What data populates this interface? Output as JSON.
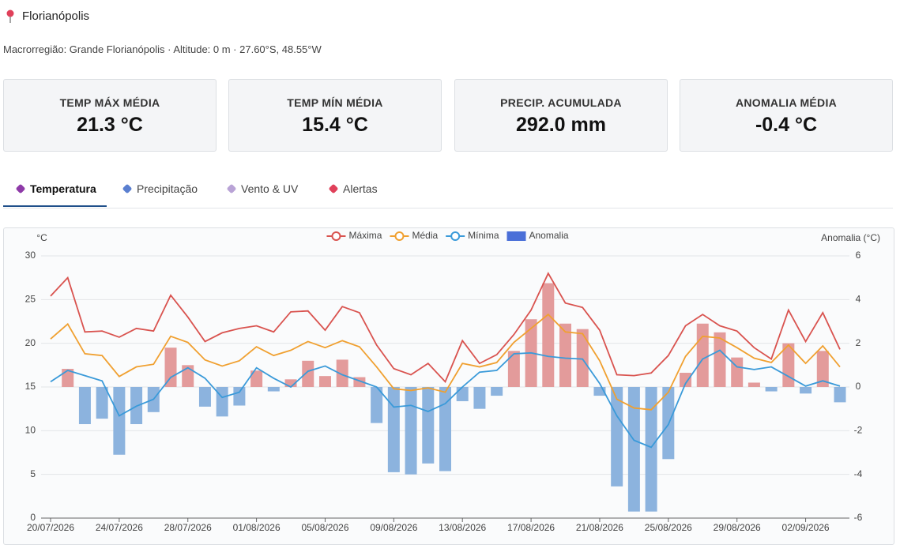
{
  "header": {
    "title": "Florianópolis",
    "subtitle": "Macrorregião: Grande Florianópolis · Altitude: 0 m · 27.60°S, 48.55°W"
  },
  "stats": [
    {
      "label": "TEMP MÁX MÉDIA",
      "value": "21.3 °C"
    },
    {
      "label": "TEMP MÍN MÉDIA",
      "value": "15.4 °C"
    },
    {
      "label": "PRECIP. ACUMULADA",
      "value": "292.0 mm"
    },
    {
      "label": "ANOMALIA MÉDIA",
      "value": "-0.4 °C"
    }
  ],
  "tabs": [
    "Temperatura",
    "Precipitação",
    "Vento & UV",
    "Alertas"
  ],
  "active_tab": 0,
  "chart_data": {
    "type": "combo",
    "y_label": "°C",
    "y2_label": "Anomalia (°C)",
    "categories": [
      "20/07/2026",
      null,
      null,
      null,
      "24/07/2026",
      null,
      null,
      null,
      "28/07/2026",
      null,
      null,
      null,
      "01/08/2026",
      null,
      null,
      null,
      "05/08/2026",
      null,
      null,
      null,
      "09/08/2026",
      null,
      null,
      null,
      "13/08/2026",
      null,
      null,
      null,
      "17/08/2026",
      null,
      null,
      null,
      "21/08/2026",
      null,
      null,
      null,
      "25/08/2026",
      null,
      null,
      null,
      "29/08/2026",
      null,
      null,
      null,
      "02/09/2026",
      null,
      null
    ],
    "ylim": [
      0,
      30
    ],
    "yticks": [
      0,
      5,
      10,
      15,
      20,
      25,
      30
    ],
    "y2lim": [
      -6,
      6
    ],
    "y2ticks": [
      -6,
      -4,
      -2,
      0,
      2,
      4,
      6
    ],
    "grid": true,
    "legend": "top",
    "series": [
      {
        "name": "Máxima",
        "type": "line",
        "color": "#d9534f",
        "values": [
          25.4,
          27.5,
          21.3,
          21.4,
          20.7,
          21.7,
          21.4,
          25.5,
          23.0,
          20.2,
          21.2,
          21.7,
          22.0,
          21.3,
          23.6,
          23.7,
          21.5,
          24.2,
          23.5,
          19.8,
          17.1,
          16.4,
          17.7,
          15.6,
          20.3,
          17.7,
          18.7,
          21.0,
          23.8,
          28.0,
          24.6,
          24.1,
          21.5,
          16.4,
          16.3,
          16.6,
          18.6,
          22.0,
          23.3,
          22.0,
          21.4,
          19.5,
          18.2,
          23.8,
          20.2,
          23.5,
          19.3
        ]
      },
      {
        "name": "Média",
        "type": "line",
        "color": "#f0a030",
        "values": [
          20.5,
          22.2,
          18.8,
          18.6,
          16.2,
          17.3,
          17.6,
          20.8,
          20.1,
          18.1,
          17.4,
          18.0,
          19.6,
          18.6,
          19.2,
          20.2,
          19.5,
          20.3,
          19.6,
          17.3,
          14.8,
          14.6,
          14.9,
          14.4,
          17.7,
          17.3,
          17.8,
          20.1,
          21.7,
          23.3,
          21.3,
          21.1,
          18.0,
          13.6,
          12.6,
          12.4,
          14.4,
          18.5,
          20.8,
          20.6,
          19.5,
          18.3,
          17.8,
          19.8,
          17.7,
          19.7,
          17.3
        ]
      },
      {
        "name": "Mínima",
        "type": "line",
        "color": "#3a9ad9",
        "values": [
          15.6,
          16.9,
          16.3,
          15.7,
          11.7,
          12.8,
          13.6,
          16.1,
          17.2,
          16.0,
          13.8,
          14.4,
          17.2,
          16.0,
          15.0,
          16.8,
          17.4,
          16.4,
          15.7,
          15.0,
          12.7,
          12.9,
          12.2,
          13.1,
          15.0,
          16.7,
          16.9,
          18.8,
          18.9,
          18.5,
          18.3,
          18.2,
          15.4,
          11.7,
          8.9,
          8.1,
          10.7,
          15.4,
          18.2,
          19.2,
          17.3,
          17.0,
          17.3,
          16.2,
          15.1,
          15.7,
          15.1
        ]
      },
      {
        "name": "Anomalia",
        "type": "bar",
        "axis": "y2",
        "color": "#4a6fd8",
        "positive_color": "#e39b9b",
        "negative_color": "#8cb3de",
        "values": [
          null,
          0.83,
          -1.7,
          -1.45,
          -3.1,
          -1.7,
          -1.15,
          1.8,
          1.0,
          -0.9,
          -1.35,
          -0.85,
          0.75,
          -0.2,
          0.35,
          1.2,
          0.5,
          1.25,
          0.45,
          -1.65,
          -3.9,
          -4.0,
          -3.5,
          -3.85,
          -0.65,
          -1.0,
          -0.4,
          1.65,
          3.1,
          4.75,
          2.9,
          2.65,
          -0.4,
          -4.55,
          -5.7,
          -5.7,
          -3.3,
          0.65,
          2.9,
          2.5,
          1.35,
          0.2,
          -0.2,
          2.0,
          -0.3,
          1.65,
          -0.7
        ]
      }
    ]
  }
}
